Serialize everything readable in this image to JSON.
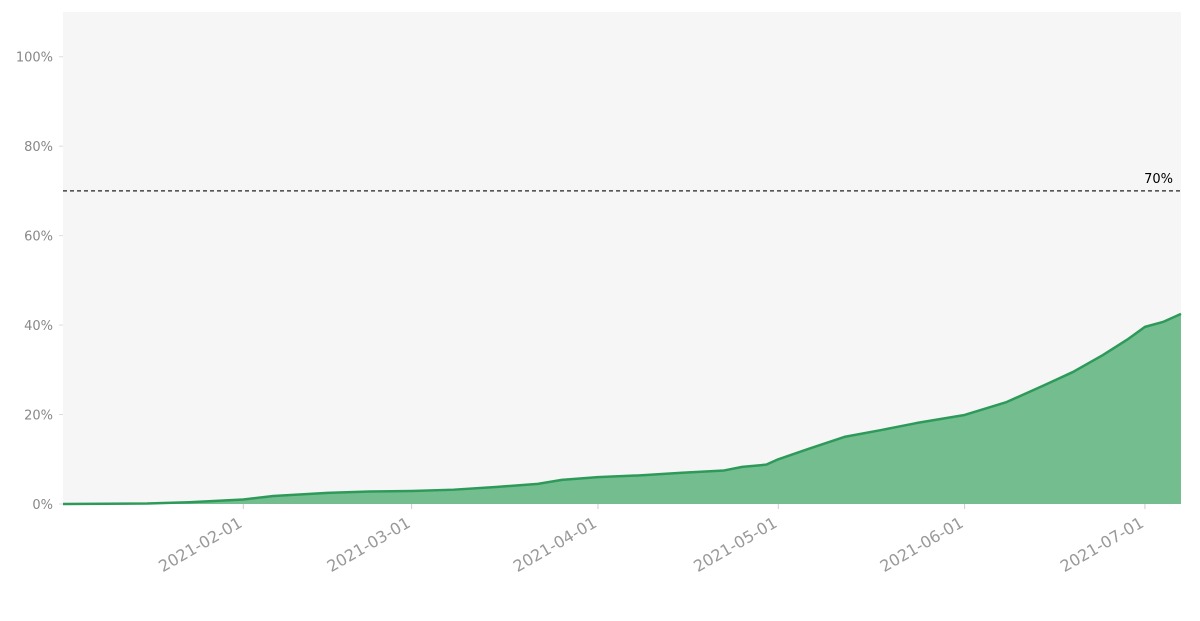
{
  "chart_data": {
    "type": "area",
    "x": [
      "2021-01-02",
      "2021-01-16",
      "2021-01-23",
      "2021-02-01",
      "2021-02-06",
      "2021-02-15",
      "2021-02-22",
      "2021-03-01",
      "2021-03-08",
      "2021-03-15",
      "2021-03-22",
      "2021-03-26",
      "2021-04-01",
      "2021-04-08",
      "2021-04-15",
      "2021-04-22",
      "2021-04-25",
      "2021-04-29",
      "2021-05-01",
      "2021-05-06",
      "2021-05-12",
      "2021-05-18",
      "2021-05-24",
      "2021-06-01",
      "2021-06-08",
      "2021-06-14",
      "2021-06-19",
      "2021-06-24",
      "2021-06-28",
      "2021-07-01",
      "2021-07-04",
      "2021-07-07"
    ],
    "series": [
      {
        "color": "#2e9a5a",
        "fill": "#73bd8e",
        "values": [
          0,
          0.1,
          0.4,
          1.0,
          1.8,
          2.5,
          2.8,
          2.9,
          3.2,
          3.8,
          4.5,
          5.4,
          6.0,
          6.4,
          7.0,
          7.5,
          8.3,
          8.8,
          10.0,
          12.3,
          15.0,
          16.5,
          18.1,
          19.9,
          22.8,
          26.4,
          29.5,
          33.3,
          36.7,
          39.6,
          40.7,
          42.5
        ]
      }
    ],
    "xlim": [
      "2021-01-02",
      "2021-07-07"
    ],
    "xticks": [
      "2021-02-01",
      "2021-03-01",
      "2021-04-01",
      "2021-05-01",
      "2021-06-01",
      "2021-07-01"
    ],
    "ylim": [
      0,
      110
    ],
    "yticks": [
      {
        "value": 0,
        "label": "0%"
      },
      {
        "value": 20,
        "label": "20%"
      },
      {
        "value": 40,
        "label": "40%"
      },
      {
        "value": 60,
        "label": "60%"
      },
      {
        "value": 80,
        "label": "80%"
      },
      {
        "value": 100,
        "label": "100%"
      }
    ],
    "reference_line": {
      "value": 70,
      "label": "70%"
    },
    "background": "#f6f6f6"
  }
}
